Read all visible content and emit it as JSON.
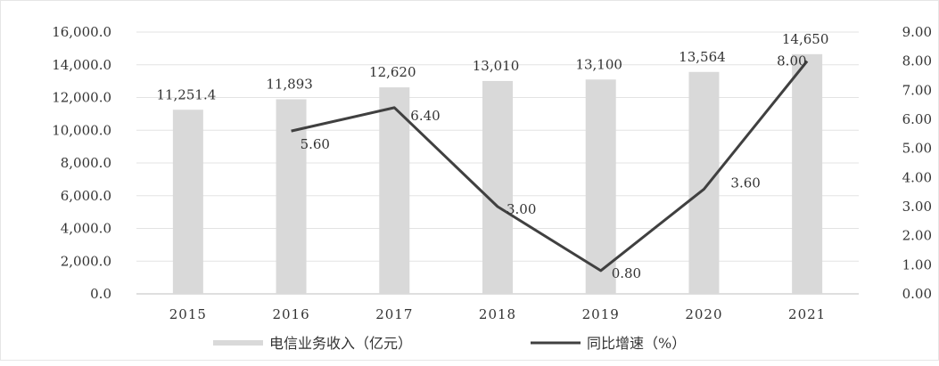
{
  "chart_data": {
    "type": "bar+line",
    "categories": [
      "2015",
      "2016",
      "2017",
      "2018",
      "2019",
      "2020",
      "2021"
    ],
    "series": [
      {
        "name": "电信业务收入（亿元）",
        "type": "bar",
        "axis": "left",
        "values": [
          11251.4,
          11893,
          12620,
          13010,
          13100,
          13564,
          14650
        ],
        "labels": [
          "11,251.4",
          "11,893",
          "12,620",
          "13,010",
          "13,100",
          "13,564",
          "14,650"
        ],
        "color": "#d9d9d9"
      },
      {
        "name": "同比增速（%）",
        "type": "line",
        "axis": "right",
        "values": [
          null,
          5.6,
          6.4,
          3.0,
          0.8,
          3.6,
          8.0
        ],
        "labels": [
          "",
          "5.60",
          "6.40",
          "3.00",
          "0.80",
          "3.60",
          "8.00"
        ],
        "color": "#404040"
      }
    ],
    "y_left": {
      "ylim": [
        0,
        16000
      ],
      "ticks": [
        "0.0",
        "2,000.0",
        "4,000.0",
        "6,000.0",
        "8,000.0",
        "10,000.0",
        "12,000.0",
        "14,000.0",
        "16,000.0"
      ]
    },
    "y_right": {
      "ylim": [
        0,
        9
      ],
      "ticks": [
        "0.00",
        "1.00",
        "2.00",
        "3.00",
        "4.00",
        "5.00",
        "6.00",
        "7.00",
        "8.00",
        "9.00"
      ]
    },
    "grid": true,
    "legend": "bottom"
  }
}
